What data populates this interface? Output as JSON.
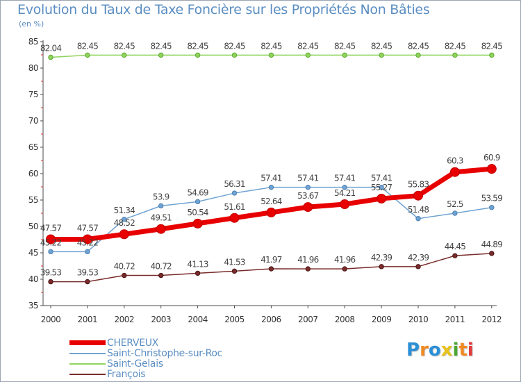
{
  "title": "Evolution du Taux de Taxe Foncière sur les Propriétés Non Bâties",
  "subtitle": "(en %)",
  "logo": {
    "text": "Proxiti",
    "letters": [
      "P",
      "r",
      "o",
      "x",
      "i",
      "t",
      "i"
    ],
    "colors": [
      "#2b8fd6",
      "#f08a24",
      "#2b8fd6",
      "#e8c21a",
      "#4aa832",
      "#f08a24",
      "#e23a3a"
    ]
  },
  "chart_data": {
    "type": "line",
    "title": "Evolution du Taux de Taxe Foncière sur les Propriétés Non Bâties",
    "ylabel": "(en %)",
    "xlabel": "",
    "ylim": [
      35,
      85
    ],
    "yticks": [
      35,
      40,
      45,
      50,
      55,
      60,
      65,
      70,
      75,
      80,
      85
    ],
    "grid": false,
    "legend_position": "bottom-left",
    "categories": [
      "2000",
      "2001",
      "2002",
      "2003",
      "2004",
      "2005",
      "2006",
      "2007",
      "2008",
      "2009",
      "2010",
      "2011",
      "2012"
    ],
    "series": [
      {
        "name": "CHERVEUX",
        "color": "#e80000",
        "values": [
          47.57,
          47.57,
          48.52,
          49.51,
          50.54,
          51.61,
          52.64,
          53.67,
          54.21,
          55.27,
          55.83,
          60.3,
          60.9
        ],
        "labels": [
          "47.57",
          "47.57",
          "48.52",
          "49.51",
          "50.54",
          "51.61",
          "52.64",
          "53.67",
          "54.21",
          "55.27",
          "55.83",
          "60.3",
          "60.9"
        ]
      },
      {
        "name": "Saint-Christophe-sur-Roc",
        "color": "#6fa3d2",
        "values": [
          45.22,
          45.22,
          51.34,
          53.9,
          54.69,
          56.31,
          57.41,
          57.41,
          57.41,
          57.41,
          51.48,
          52.5,
          53.59
        ],
        "labels": [
          "45.22",
          "45.22",
          "51.34",
          "53.9",
          "54.69",
          "56.31",
          "57.41",
          "57.41",
          "57.41",
          "57.41",
          "51.48",
          "52.5",
          "53.59"
        ]
      },
      {
        "name": "Saint-Gelais",
        "color": "#8fd45c",
        "values": [
          82.04,
          82.45,
          82.45,
          82.45,
          82.45,
          82.45,
          82.45,
          82.45,
          82.45,
          82.45,
          82.45,
          82.45,
          82.45
        ],
        "labels": [
          "82.04",
          "82.45",
          "82.45",
          "82.45",
          "82.45",
          "82.45",
          "82.45",
          "82.45",
          "82.45",
          "82.45",
          "82.45",
          "82.45",
          "82.45"
        ]
      },
      {
        "name": "François",
        "color": "#7a2b2b",
        "values": [
          39.53,
          39.53,
          40.72,
          40.72,
          41.13,
          41.53,
          41.97,
          41.96,
          41.96,
          42.39,
          42.39,
          44.45,
          44.89
        ],
        "labels": [
          "39.53",
          "39.53",
          "40.72",
          "40.72",
          "41.13",
          "41.53",
          "41.97",
          "41.96",
          "41.96",
          "42.39",
          "42.39",
          "44.45",
          "44.89"
        ]
      }
    ]
  }
}
